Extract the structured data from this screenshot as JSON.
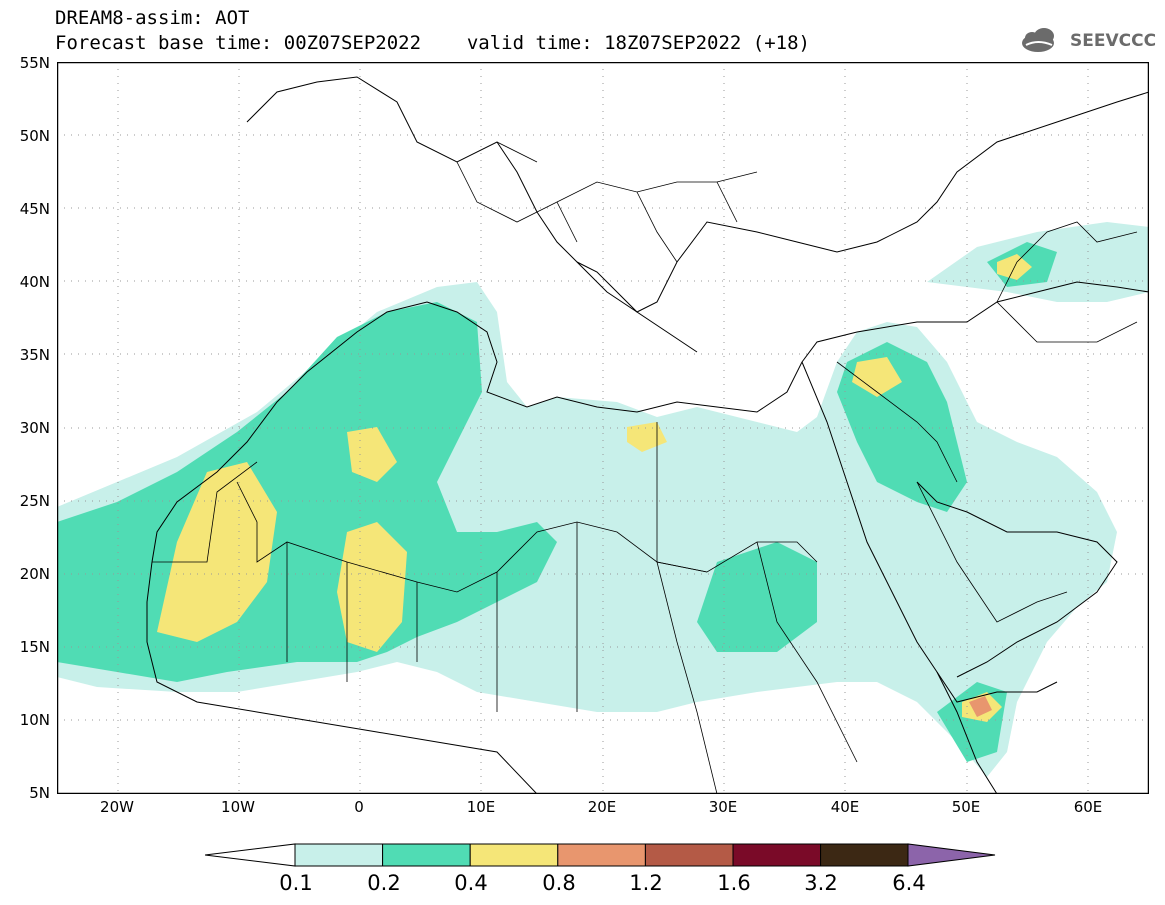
{
  "header": {
    "title_line1": "DREAM8-assim: AOT",
    "base_time": "Forecast base time: 00Z07SEP2022",
    "valid_time": "valid time: 18Z07SEP2022 (+18)"
  },
  "logo": {
    "text": "SEEVCCC",
    "icon": "cloud-icon"
  },
  "map": {
    "lat_labels": [
      "55N",
      "50N",
      "45N",
      "40N",
      "35N",
      "30N",
      "25N",
      "20N",
      "15N",
      "10N",
      "5N"
    ],
    "lon_labels": [
      "20W",
      "10W",
      "0",
      "10E",
      "20E",
      "30E",
      "40E",
      "50E",
      "60E"
    ],
    "lon_range": [
      -25,
      65
    ],
    "lat_range": [
      5,
      55
    ]
  },
  "legend": {
    "thresholds": [
      "0.1",
      "0.2",
      "0.4",
      "0.8",
      "1.2",
      "1.6",
      "3.2",
      "6.4"
    ],
    "colors": [
      "#c8f0ea",
      "#50dcb4",
      "#f5e678",
      "#e8966e",
      "#b45a46",
      "#7a0a28",
      "#3c2814",
      "#8c64aa"
    ]
  }
}
